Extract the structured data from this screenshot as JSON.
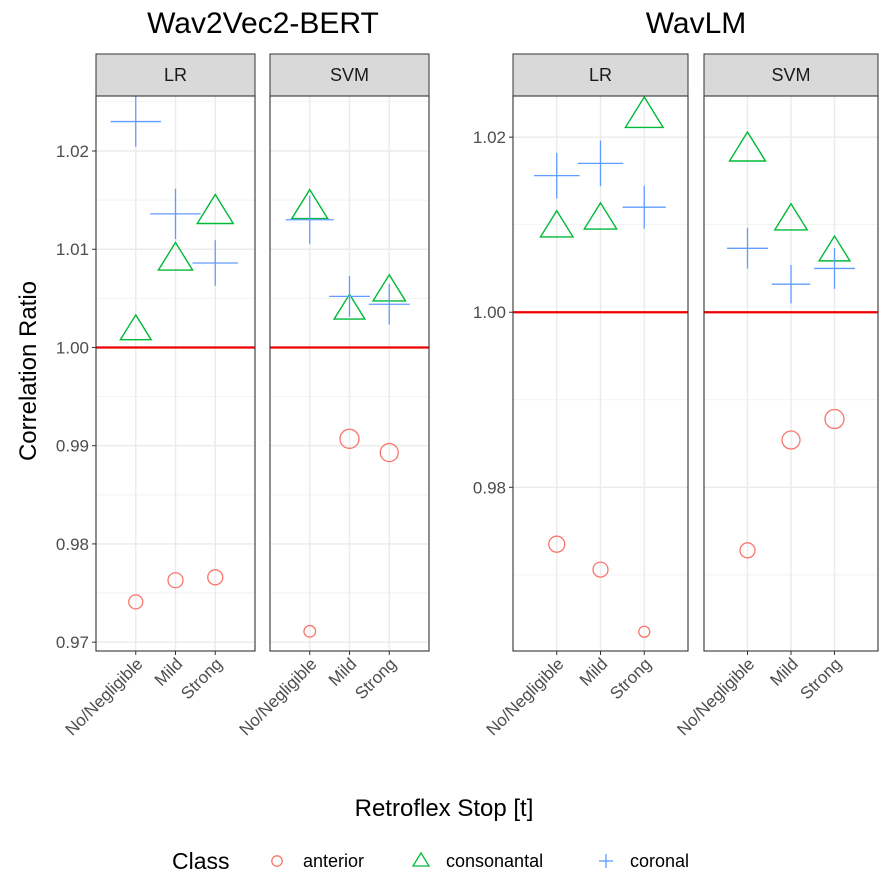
{
  "chart_data": {
    "type": "scatter",
    "xlabel": "Retroflex Stop [t]",
    "ylabel": "Correlation Ratio",
    "categories": [
      "No/Negligible",
      "Mild",
      "Strong"
    ],
    "reference_line": 1.0,
    "legend": {
      "title": "Class",
      "position": "bottom",
      "entries": [
        {
          "name": "anterior",
          "shape": "circle",
          "color": "#F8766D"
        },
        {
          "name": "consonantal",
          "shape": "triangle",
          "color": "#00BA38"
        },
        {
          "name": "coronal",
          "shape": "plus",
          "color": "#619CFF"
        }
      ]
    },
    "panels": [
      {
        "title": "Wav2Vec2-BERT",
        "ylim": [
          0.9691,
          1.0256
        ],
        "yticks": [
          0.97,
          0.98,
          0.99,
          1.0,
          1.01,
          1.02
        ],
        "ytick_labels": [
          "0.97",
          "0.98",
          "0.99",
          "1.00",
          "1.01",
          "1.02"
        ],
        "facets": [
          {
            "label": "LR",
            "series": [
              {
                "name": "anterior",
                "values": [
                  0.9741,
                  0.9763,
                  0.9766
                ],
                "sizes": [
                  0.3,
                  0.35,
                  0.35
                ]
              },
              {
                "name": "consonantal",
                "values": [
                  1.0018,
                  1.009,
                  1.0138
                ],
                "sizes": [
                  0.6,
                  0.7,
                  0.75
                ]
              },
              {
                "name": "coronal",
                "values": [
                  1.023,
                  1.0136,
                  1.0086
                ],
                "sizes": [
                  0.8,
                  0.8,
                  0.7
                ]
              }
            ]
          },
          {
            "label": "SVM",
            "series": [
              {
                "name": "anterior",
                "values": [
                  0.9711,
                  0.9907,
                  0.9893
                ],
                "sizes": [
                  0.18,
                  0.55,
                  0.5
                ]
              },
              {
                "name": "consonantal",
                "values": [
                  1.0143,
                  1.0039,
                  1.0058
                ],
                "sizes": [
                  0.75,
                  0.6,
                  0.65
                ]
              },
              {
                "name": "coronal",
                "values": [
                  1.013,
                  1.0052,
                  1.0044
                ],
                "sizes": [
                  0.75,
                  0.6,
                  0.6
                ]
              }
            ]
          }
        ]
      },
      {
        "title": "WavLM",
        "ylim": [
          0.9613,
          1.0247
        ],
        "yticks": [
          0.98,
          1.0,
          1.02
        ],
        "ytick_labels": [
          "0.98",
          "1.00",
          "1.02"
        ],
        "facets": [
          {
            "label": "LR",
            "series": [
              {
                "name": "anterior",
                "values": [
                  0.9735,
                  0.9706,
                  0.9635
                ],
                "sizes": [
                  0.4,
                  0.35,
                  0.15
                ]
              },
              {
                "name": "consonantal",
                "values": [
                  1.0098,
                  1.0107,
                  1.0225
                ],
                "sizes": [
                  0.65,
                  0.65,
                  0.8
                ]
              },
              {
                "name": "coronal",
                "values": [
                  1.0156,
                  1.017,
                  1.012
                ],
                "sizes": [
                  0.7,
                  0.7,
                  0.65
                ]
              }
            ]
          },
          {
            "label": "SVM",
            "series": [
              {
                "name": "anterior",
                "values": [
                  0.9728,
                  0.9854,
                  0.9878
                ],
                "sizes": [
                  0.35,
                  0.5,
                  0.55
                ]
              },
              {
                "name": "consonantal",
                "values": [
                  1.0186,
                  1.0106,
                  1.007
                ],
                "sizes": [
                  0.75,
                  0.65,
                  0.6
                ]
              },
              {
                "name": "coronal",
                "values": [
                  1.0073,
                  1.0032,
                  1.005
                ],
                "sizes": [
                  0.6,
                  0.55,
                  0.6
                ]
              }
            ]
          }
        ]
      }
    ]
  }
}
